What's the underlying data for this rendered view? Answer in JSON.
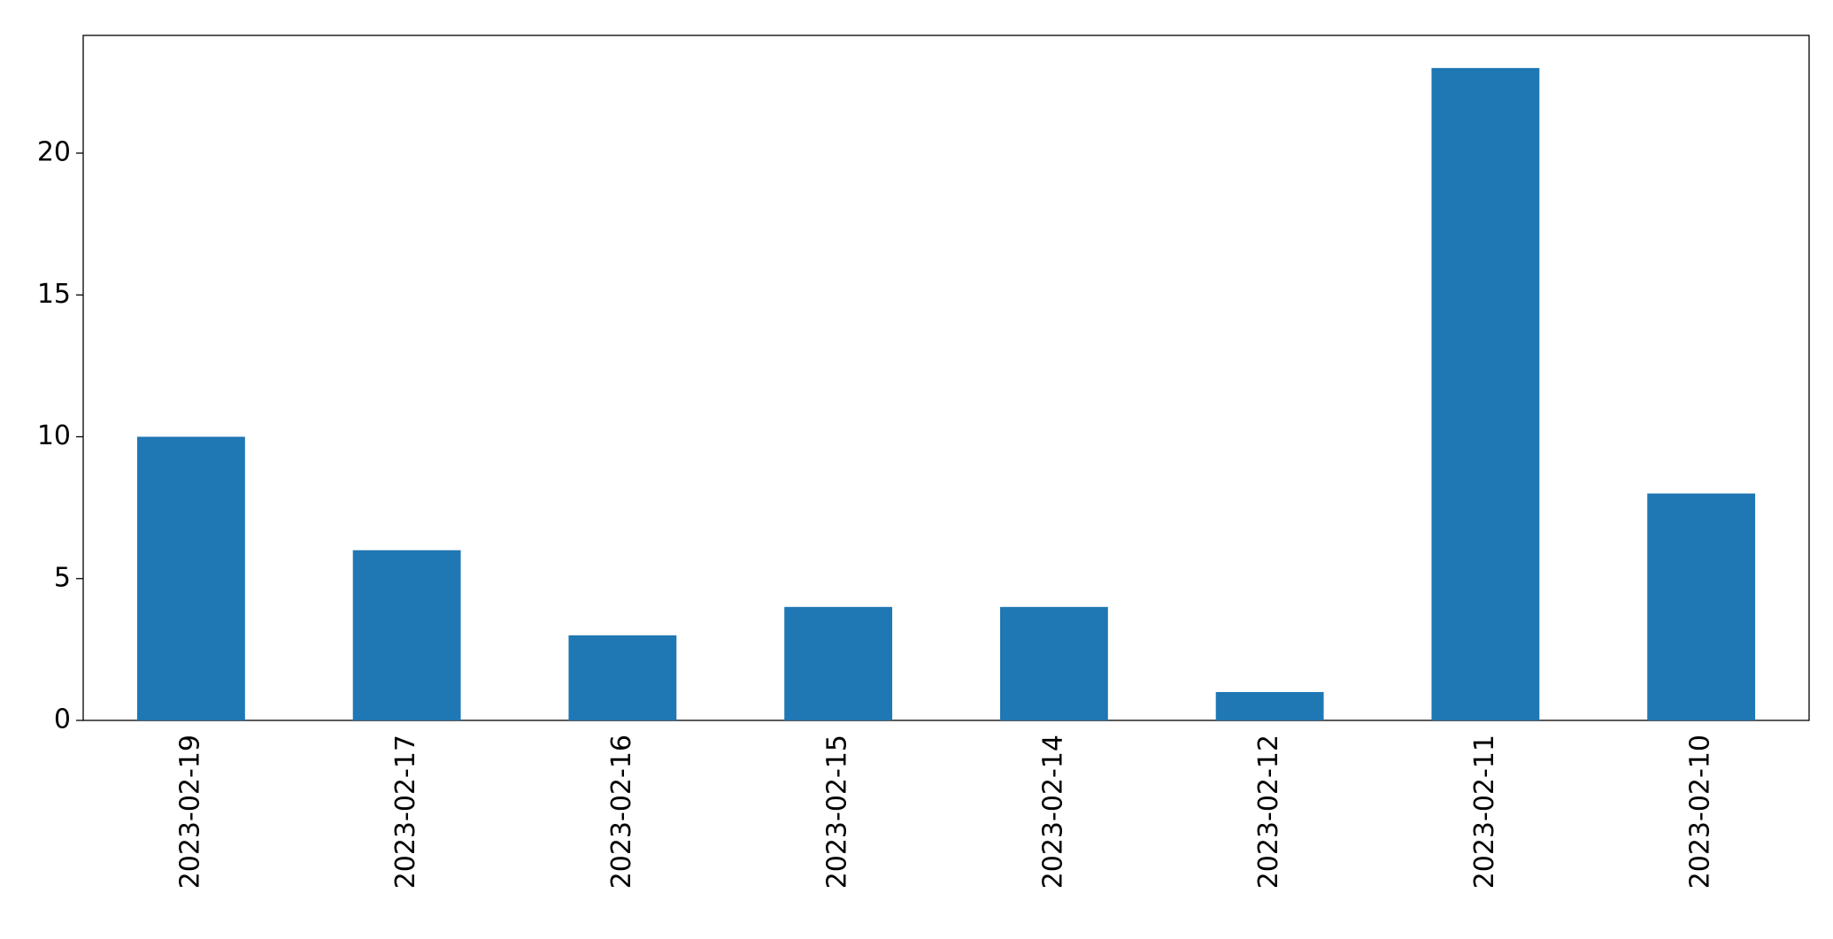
{
  "chart_data": {
    "type": "bar",
    "categories": [
      "2023-02-19",
      "2023-02-17",
      "2023-02-16",
      "2023-02-15",
      "2023-02-14",
      "2023-02-12",
      "2023-02-11",
      "2023-02-10"
    ],
    "values": [
      10,
      6,
      3,
      4,
      4,
      1,
      23,
      8
    ],
    "color": "#1f77b4",
    "ylim": [
      0,
      24.15
    ],
    "yticks": [
      0,
      5,
      10,
      15,
      20
    ],
    "grid": false
  }
}
